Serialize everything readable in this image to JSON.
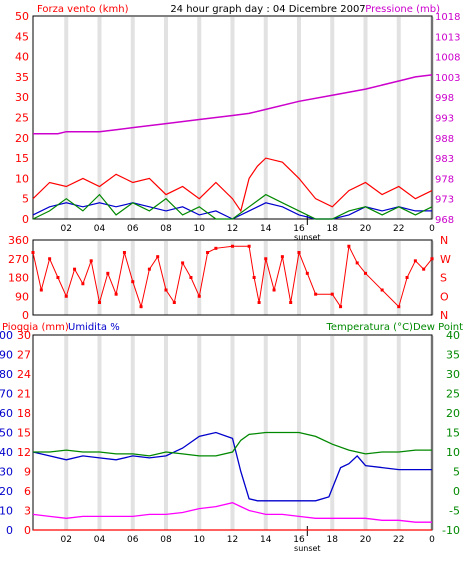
{
  "header": {
    "left_title": "Forza vento (kmh)",
    "center_title": "24 hour graph day : 04 Dicembre 2007",
    "right_title": "Pressione (mb)"
  },
  "chart_data": [
    {
      "type": "line",
      "x_ticks": [
        "02",
        "04",
        "06",
        "08",
        "10",
        "12",
        "14",
        "16",
        "18",
        "20",
        "22",
        "0"
      ],
      "x_marker_label": "sunset",
      "xlim": [
        0,
        24
      ],
      "y_left": {
        "ticks": [
          0,
          5,
          10,
          15,
          20,
          25,
          30,
          35,
          40,
          45,
          50
        ],
        "ylim": [
          0,
          50
        ]
      },
      "y_right": {
        "ticks": [
          968,
          973,
          978,
          983,
          988,
          993,
          998,
          1003,
          1008,
          1013,
          1018
        ],
        "ylim": [
          968,
          1018
        ]
      },
      "series": [
        {
          "key": "pressure",
          "color": "#cc00cc",
          "axis": "right",
          "points": [
            [
              0,
              989
            ],
            [
              1.5,
              989
            ],
            [
              2,
              989.5
            ],
            [
              4,
              989.5
            ],
            [
              5,
              990
            ],
            [
              6,
              990.5
            ],
            [
              8,
              991.5
            ],
            [
              10,
              992.5
            ],
            [
              12,
              993.5
            ],
            [
              13,
              994
            ],
            [
              14,
              995
            ],
            [
              16,
              997
            ],
            [
              18,
              998.5
            ],
            [
              20,
              1000
            ],
            [
              22,
              1002
            ],
            [
              23,
              1003
            ],
            [
              24,
              1003.5
            ]
          ]
        },
        {
          "key": "gust",
          "color": "#ff0000",
          "axis": "left",
          "points": [
            [
              0,
              5
            ],
            [
              1,
              9
            ],
            [
              2,
              8
            ],
            [
              3,
              10
            ],
            [
              4,
              8
            ],
            [
              5,
              11
            ],
            [
              6,
              9
            ],
            [
              7,
              10
            ],
            [
              8,
              6
            ],
            [
              9,
              8
            ],
            [
              10,
              5
            ],
            [
              11,
              9
            ],
            [
              12,
              5
            ],
            [
              12.5,
              2
            ],
            [
              13,
              10
            ],
            [
              13.5,
              13
            ],
            [
              14,
              15
            ],
            [
              15,
              14
            ],
            [
              16,
              10
            ],
            [
              17,
              5
            ],
            [
              18,
              3
            ],
            [
              19,
              7
            ],
            [
              20,
              9
            ],
            [
              21,
              6
            ],
            [
              22,
              8
            ],
            [
              23,
              5
            ],
            [
              24,
              7
            ]
          ]
        },
        {
          "key": "avg_speed",
          "color": "#0000cc",
          "axis": "left",
          "points": [
            [
              0,
              1
            ],
            [
              1,
              3
            ],
            [
              2,
              4
            ],
            [
              3,
              3
            ],
            [
              4,
              4
            ],
            [
              5,
              3
            ],
            [
              6,
              4
            ],
            [
              7,
              3
            ],
            [
              8,
              2
            ],
            [
              9,
              3
            ],
            [
              10,
              1
            ],
            [
              11,
              2
            ],
            [
              12,
              0
            ],
            [
              13,
              2
            ],
            [
              14,
              4
            ],
            [
              15,
              3
            ],
            [
              16,
              1
            ],
            [
              17,
              0
            ],
            [
              18,
              0
            ],
            [
              19,
              1
            ],
            [
              20,
              3
            ],
            [
              21,
              2
            ],
            [
              22,
              3
            ],
            [
              23,
              2
            ],
            [
              24,
              2
            ]
          ]
        },
        {
          "key": "wind_speed",
          "color": "#008800",
          "axis": "left",
          "points": [
            [
              0,
              0
            ],
            [
              1,
              2
            ],
            [
              2,
              5
            ],
            [
              3,
              2
            ],
            [
              4,
              6
            ],
            [
              5,
              1
            ],
            [
              6,
              4
            ],
            [
              7,
              2
            ],
            [
              8,
              5
            ],
            [
              9,
              1
            ],
            [
              10,
              3
            ],
            [
              11,
              0
            ],
            [
              12,
              0
            ],
            [
              13,
              3
            ],
            [
              14,
              6
            ],
            [
              15,
              4
            ],
            [
              16,
              2
            ],
            [
              17,
              0
            ],
            [
              18,
              0
            ],
            [
              19,
              2
            ],
            [
              20,
              3
            ],
            [
              21,
              1
            ],
            [
              22,
              3
            ],
            [
              23,
              1
            ],
            [
              24,
              3
            ]
          ]
        }
      ]
    },
    {
      "type": "scatter",
      "x_ticks": [
        "02",
        "04",
        "06",
        "08",
        "10",
        "12",
        "14",
        "16",
        "18",
        "20",
        "22",
        "0"
      ],
      "xlim": [
        0,
        24
      ],
      "y_left": {
        "ticks": [
          0,
          90,
          180,
          270,
          360
        ],
        "ylim": [
          0,
          360
        ]
      },
      "y_right_labels": [
        "N",
        "W",
        "S",
        "O",
        "N"
      ],
      "series": [
        {
          "key": "direction",
          "color": "#ff0000",
          "points": [
            [
              0,
              300
            ],
            [
              0.5,
              120
            ],
            [
              1,
              270
            ],
            [
              1.5,
              180
            ],
            [
              2,
              90
            ],
            [
              2.5,
              220
            ],
            [
              3,
              150
            ],
            [
              3.5,
              260
            ],
            [
              4,
              60
            ],
            [
              4.5,
              200
            ],
            [
              5,
              100
            ],
            [
              5.5,
              300
            ],
            [
              6,
              160
            ],
            [
              6.5,
              40
            ],
            [
              7,
              220
            ],
            [
              7.5,
              280
            ],
            [
              8,
              120
            ],
            [
              8.5,
              60
            ],
            [
              9,
              250
            ],
            [
              9.5,
              180
            ],
            [
              10,
              90
            ],
            [
              10.5,
              300
            ],
            [
              11,
              320
            ],
            [
              12,
              330
            ],
            [
              13,
              330
            ],
            [
              13.3,
              180
            ],
            [
              13.6,
              60
            ],
            [
              14,
              270
            ],
            [
              14.5,
              120
            ],
            [
              15,
              280
            ],
            [
              15.5,
              60
            ],
            [
              16,
              300
            ],
            [
              16.5,
              200
            ],
            [
              17,
              100
            ],
            [
              18,
              100
            ],
            [
              18.5,
              40
            ],
            [
              19,
              330
            ],
            [
              19.5,
              250
            ],
            [
              20,
              200
            ],
            [
              21,
              120
            ],
            [
              22,
              40
            ],
            [
              22.5,
              180
            ],
            [
              23,
              260
            ],
            [
              23.5,
              220
            ],
            [
              24,
              270
            ]
          ]
        }
      ]
    },
    {
      "type": "line",
      "header_left": "Pioggia (mm)",
      "header_center": "Umidita %",
      "header_right": "Temperatura (°C)Dew Point",
      "x_ticks": [
        "02",
        "04",
        "06",
        "08",
        "10",
        "12",
        "14",
        "16",
        "18",
        "20",
        "22",
        "0"
      ],
      "x_marker_label": "sunset",
      "xlim": [
        0,
        24
      ],
      "y_left_humidity": {
        "ticks": [
          0,
          10,
          20,
          30,
          40,
          50,
          60,
          70,
          80,
          90,
          100
        ],
        "ylim": [
          0,
          100
        ]
      },
      "y_left_rain": {
        "ticks": [
          0,
          3,
          6,
          9,
          12,
          15,
          18,
          21,
          24,
          27,
          30
        ],
        "ylim": [
          0,
          30
        ]
      },
      "y_right_temp": {
        "ticks": [
          -10,
          -5,
          0,
          5,
          10,
          15,
          20,
          25,
          30,
          35,
          40
        ],
        "ylim": [
          -10,
          40
        ]
      },
      "series": [
        {
          "key": "humidity",
          "color": "#0000cc",
          "axis": "left_humidity",
          "points": [
            [
              0,
              40
            ],
            [
              1,
              38
            ],
            [
              2,
              36
            ],
            [
              3,
              38
            ],
            [
              4,
              37
            ],
            [
              5,
              36
            ],
            [
              6,
              38
            ],
            [
              7,
              37
            ],
            [
              8,
              38
            ],
            [
              9,
              42
            ],
            [
              10,
              48
            ],
            [
              11,
              50
            ],
            [
              12,
              47
            ],
            [
              12.5,
              30
            ],
            [
              13,
              16
            ],
            [
              13.5,
              15
            ],
            [
              14,
              15
            ],
            [
              15,
              15
            ],
            [
              16,
              15
            ],
            [
              17,
              15
            ],
            [
              17.8,
              17
            ],
            [
              18.5,
              32
            ],
            [
              19,
              34
            ],
            [
              19.5,
              38
            ],
            [
              20,
              33
            ],
            [
              21,
              32
            ],
            [
              22,
              31
            ],
            [
              23,
              31
            ],
            [
              24,
              31
            ]
          ]
        },
        {
          "key": "temperature",
          "color": "#008800",
          "axis": "right_temp",
          "points": [
            [
              0,
              10
            ],
            [
              1,
              10
            ],
            [
              2,
              10.5
            ],
            [
              3,
              10
            ],
            [
              4,
              10
            ],
            [
              5,
              9.5
            ],
            [
              6,
              9.5
            ],
            [
              7,
              9
            ],
            [
              8,
              10
            ],
            [
              9,
              9.5
            ],
            [
              10,
              9
            ],
            [
              11,
              9
            ],
            [
              12,
              10
            ],
            [
              12.5,
              13
            ],
            [
              13,
              14.5
            ],
            [
              14,
              15
            ],
            [
              15,
              15
            ],
            [
              16,
              15
            ],
            [
              17,
              14
            ],
            [
              18,
              12
            ],
            [
              19,
              10.5
            ],
            [
              20,
              9.5
            ],
            [
              21,
              10
            ],
            [
              22,
              10
            ],
            [
              23,
              10.5
            ],
            [
              24,
              10.5
            ]
          ]
        },
        {
          "key": "dew_point",
          "color": "#ff00ff",
          "axis": "right_temp",
          "points": [
            [
              0,
              -6
            ],
            [
              1,
              -6.5
            ],
            [
              2,
              -7
            ],
            [
              3,
              -6.5
            ],
            [
              4,
              -6.5
            ],
            [
              5,
              -6.5
            ],
            [
              6,
              -6.5
            ],
            [
              7,
              -6
            ],
            [
              8,
              -6
            ],
            [
              9,
              -5.5
            ],
            [
              10,
              -4.5
            ],
            [
              11,
              -4
            ],
            [
              12,
              -3
            ],
            [
              12.5,
              -4
            ],
            [
              13,
              -5
            ],
            [
              14,
              -6
            ],
            [
              15,
              -6
            ],
            [
              16,
              -6.5
            ],
            [
              17,
              -7
            ],
            [
              18,
              -7
            ],
            [
              19,
              -7
            ],
            [
              20,
              -7
            ],
            [
              21,
              -7.5
            ],
            [
              22,
              -7.5
            ],
            [
              23,
              -8
            ],
            [
              24,
              -8
            ]
          ]
        },
        {
          "key": "rain",
          "color": "#ff0000",
          "axis": "left_rain",
          "points": [
            [
              0,
              0
            ],
            [
              24,
              0
            ]
          ]
        }
      ]
    }
  ]
}
